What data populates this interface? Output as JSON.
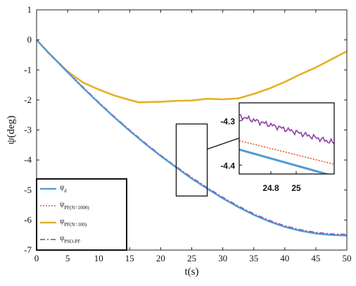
{
  "chart_data": {
    "type": "line",
    "xlabel": "t(s)",
    "ylabel": "ψ(deg)",
    "xlim": [
      0,
      50
    ],
    "ylim": [
      -7,
      1
    ],
    "xticks": [
      0,
      5,
      10,
      15,
      20,
      25,
      30,
      35,
      40,
      45,
      50
    ],
    "yticks": [
      1,
      0,
      -1,
      -2,
      -3,
      -4,
      -5,
      -6,
      -7
    ],
    "grid": false,
    "legend_position": "bottom-left",
    "series": [
      {
        "name": "ψ",
        "name_sub": "d",
        "color": "#4f9ad6",
        "style": "solid",
        "x": [
          0,
          2.5,
          5,
          7.5,
          10,
          12.5,
          15,
          17.5,
          20,
          22.5,
          25,
          27.5,
          30,
          32.5,
          35,
          37.5,
          40,
          42.5,
          45,
          47.5,
          50
        ],
        "y": [
          0,
          -0.55,
          -1.08,
          -1.6,
          -2.1,
          -2.58,
          -3.03,
          -3.46,
          -3.87,
          -4.25,
          -4.62,
          -4.96,
          -5.28,
          -5.57,
          -5.83,
          -6.05,
          -6.23,
          -6.36,
          -6.45,
          -6.5,
          -6.52
        ]
      },
      {
        "name": "ψ",
        "name_sub": "PF(N=1000)",
        "color": "#e0572a",
        "style": "dotted",
        "x": [
          0,
          2.5,
          5,
          7.5,
          10,
          12.5,
          15,
          17.5,
          20,
          22.5,
          25,
          27.5,
          30,
          32.5,
          35,
          37.5,
          40,
          42.5,
          45,
          47.5,
          50
        ],
        "y": [
          0,
          -0.54,
          -1.07,
          -1.58,
          -2.08,
          -2.56,
          -3.01,
          -3.44,
          -3.85,
          -4.23,
          -4.6,
          -4.94,
          -5.26,
          -5.55,
          -5.81,
          -6.03,
          -6.21,
          -6.34,
          -6.43,
          -6.48,
          -6.5
        ]
      },
      {
        "name": "ψ",
        "name_sub": "PF(N=100)",
        "color": "#e4b226",
        "style": "solid",
        "x": [
          0,
          2,
          5,
          7.5,
          10,
          12.5,
          15,
          16.5,
          20,
          22.5,
          25,
          27.5,
          30,
          32.5,
          35,
          37.5,
          40,
          42.5,
          45,
          47.5,
          50
        ],
        "y": [
          0,
          -0.45,
          -1.05,
          -1.42,
          -1.65,
          -1.85,
          -2.0,
          -2.08,
          -2.06,
          -2.03,
          -2.02,
          -1.96,
          -1.98,
          -1.95,
          -1.8,
          -1.62,
          -1.4,
          -1.15,
          -0.92,
          -0.65,
          -0.38
        ]
      },
      {
        "name": "ψ",
        "name_sub": "PSO-PF",
        "color": "#8e3fa0",
        "style": "dashdot",
        "x": [
          0,
          2.5,
          5,
          7.5,
          10,
          12.5,
          15,
          17.5,
          20,
          22.5,
          25,
          27.5,
          30,
          32.5,
          35,
          37.5,
          40,
          42.5,
          45,
          47.5,
          50
        ],
        "y": [
          0,
          -0.53,
          -1.06,
          -1.57,
          -2.07,
          -2.55,
          -3.0,
          -3.43,
          -3.84,
          -4.22,
          -4.58,
          -4.92,
          -5.24,
          -5.53,
          -5.79,
          -6.01,
          -6.19,
          -6.32,
          -6.41,
          -6.46,
          -6.48
        ]
      }
    ],
    "zoom_region": {
      "x": [
        22.5,
        27.5
      ],
      "y": [
        -5.2,
        -2.8
      ]
    },
    "inset": {
      "xlim": [
        24.55,
        25.3
      ],
      "ylim": [
        -4.42,
        -4.26
      ],
      "xticks": [
        24.8,
        25
      ],
      "yticks": [
        -4.3,
        -4.4
      ],
      "series": [
        {
          "color": "#4f9ad6",
          "style": "solid",
          "x": [
            24.55,
            25.3
          ],
          "y": [
            -4.365,
            -4.425
          ]
        },
        {
          "color": "#e0572a",
          "style": "dotted",
          "x": [
            24.55,
            25.3
          ],
          "y": [
            -4.345,
            -4.398
          ]
        },
        {
          "color": "#8e3fa0",
          "style": "noisy",
          "x": [
            24.55,
            25.3
          ],
          "y": [
            -4.29,
            -4.35
          ]
        }
      ]
    }
  }
}
